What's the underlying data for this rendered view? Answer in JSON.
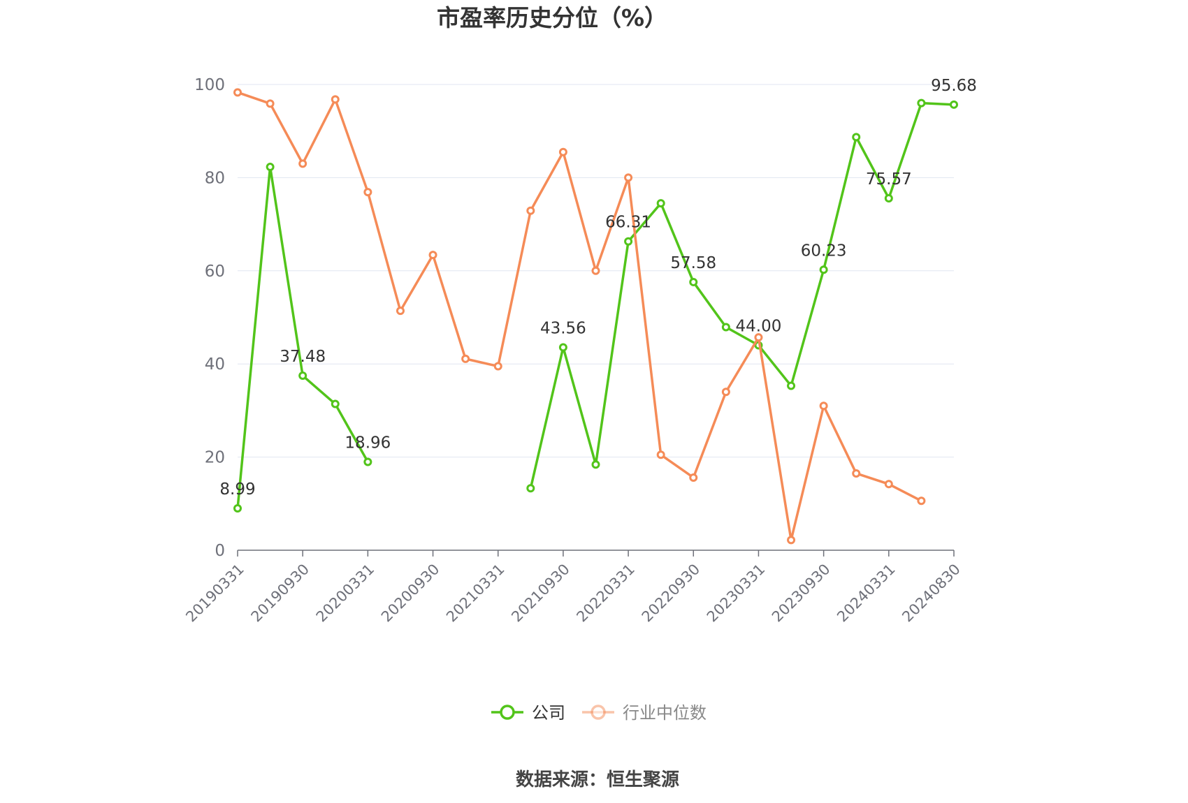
{
  "chart_data": {
    "type": "line",
    "title": "市盈率历史分位（%）",
    "source": "数据来源：恒生聚源",
    "ylim": [
      0,
      100
    ],
    "yticks": [
      0,
      20,
      40,
      60,
      80,
      100
    ],
    "grid": true,
    "legend_position": "bottom-center",
    "x": [
      "20190331",
      "20190630",
      "20190930",
      "20191231",
      "20200331",
      "20200630",
      "20200930",
      "20201231",
      "20210331",
      "20210630",
      "20210930",
      "20211231",
      "20220331",
      "20220630",
      "20220930",
      "20221231",
      "20230331",
      "20230630",
      "20230930",
      "20231231",
      "20240331",
      "20240630",
      "20240830"
    ],
    "xtick_labels": [
      "20190331",
      "20190930",
      "20200331",
      "20200930",
      "20210331",
      "20210930",
      "20220331",
      "20220930",
      "20230331",
      "20230930",
      "20240331",
      "20240830"
    ],
    "series": [
      {
        "name": "公司",
        "color": "#52c41a",
        "values": [
          8.99,
          82.3,
          37.48,
          31.4,
          18.96,
          null,
          null,
          null,
          null,
          13.3,
          43.56,
          18.4,
          66.31,
          74.5,
          57.58,
          47.9,
          44.0,
          35.3,
          60.23,
          88.7,
          75.57,
          96.0,
          95.68
        ],
        "labels": {
          "0": "8.99",
          "2": "37.48",
          "4": "18.96",
          "10": "43.56",
          "12": "66.31",
          "14": "57.58",
          "16": "44.00",
          "18": "60.23",
          "20": "75.57",
          "22": "95.68"
        }
      },
      {
        "name": "行业中位数",
        "color": "#f58b57",
        "values": [
          98.3,
          95.9,
          83.0,
          96.8,
          76.9,
          51.4,
          63.4,
          41.1,
          39.5,
          72.9,
          85.5,
          60.0,
          80.0,
          20.5,
          15.6,
          34.0,
          45.7,
          2.2,
          31.0,
          16.5,
          14.2,
          10.6,
          null
        ]
      }
    ]
  }
}
